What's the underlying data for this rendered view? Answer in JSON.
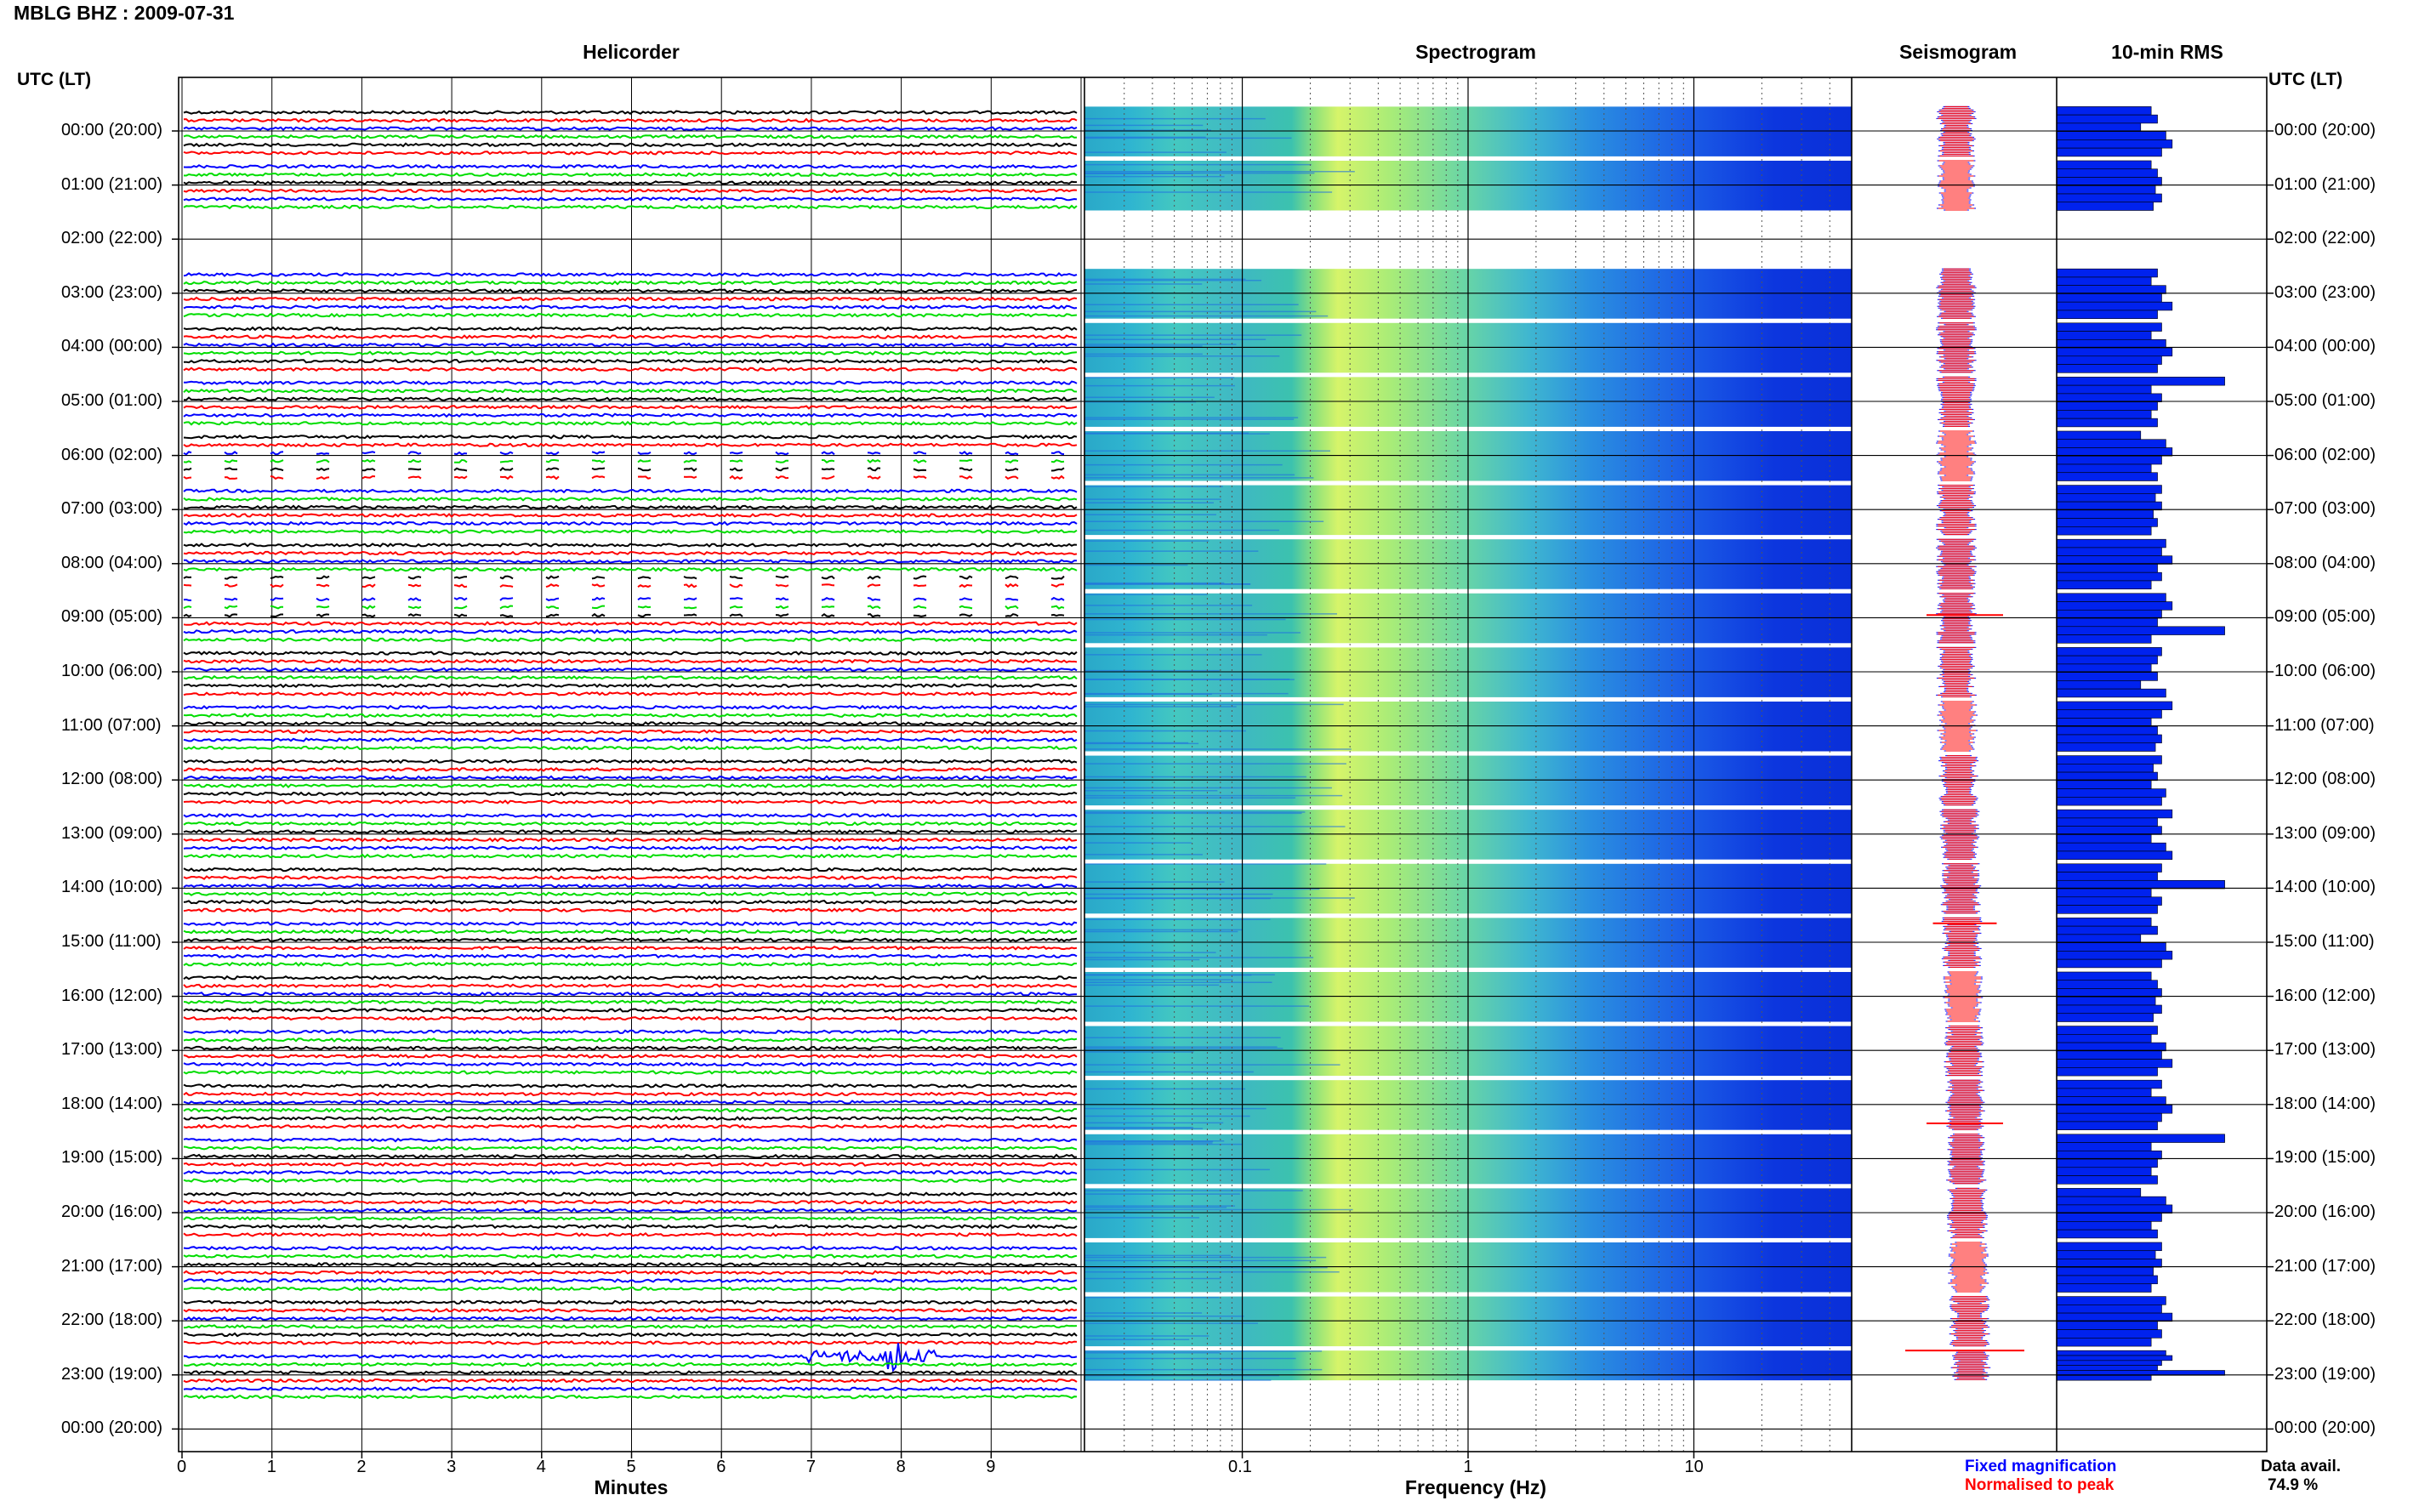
{
  "title": "MBLG BHZ : 2009-07-31",
  "panels": {
    "helicorder": "Helicorder",
    "spectrogram": "Spectrogram",
    "seismogram": "Seismogram",
    "rms": "10-min RMS"
  },
  "utc_header_left": "UTC (LT)",
  "utc_header_right": "UTC (LT)",
  "time_labels": [
    "00:00 (20:00)",
    "01:00 (21:00)",
    "02:00 (22:00)",
    "03:00 (23:00)",
    "04:00 (00:00)",
    "05:00 (01:00)",
    "06:00 (02:00)",
    "07:00 (03:00)",
    "08:00 (04:00)",
    "09:00 (05:00)",
    "10:00 (06:00)",
    "11:00 (07:00)",
    "12:00 (08:00)",
    "13:00 (09:00)",
    "14:00 (10:00)",
    "15:00 (11:00)",
    "16:00 (12:00)",
    "17:00 (13:00)",
    "18:00 (14:00)",
    "19:00 (15:00)",
    "20:00 (16:00)",
    "21:00 (17:00)",
    "22:00 (18:00)",
    "23:00 (19:00)",
    "00:00 (20:00)"
  ],
  "minutes_ticks": [
    "0",
    "1",
    "2",
    "3",
    "4",
    "5",
    "6",
    "7",
    "8",
    "9"
  ],
  "minutes_label": "Minutes",
  "frequency_ticks": [
    "0.1",
    "1",
    "10"
  ],
  "frequency_label": "Frequency (Hz)",
  "legend": {
    "fixed": "Fixed magnification",
    "normalised": "Normalised to peak",
    "data_avail_label": "Data avail.",
    "data_avail_value": "74.9 %"
  },
  "colors": {
    "trace_cycle": [
      "#000000",
      "#ff0000",
      "#0000ff",
      "#00dd00"
    ],
    "fixed_magnification": "#0000ff",
    "normalised_to_peak": "#ff0000",
    "rms_bar": "#0022ee"
  },
  "chart_data": {
    "type": "heatmap",
    "title": "MBLG BHZ : 2009-07-31",
    "hours_utc": 24,
    "helicorder_traces_per_hour": 6,
    "helicorder_xlim_minutes": [
      0,
      10
    ],
    "spectrogram_xlim_hz": [
      0.02,
      50
    ],
    "spectrogram_xscale": "log",
    "hours_with_data": [
      0,
      1,
      3,
      4,
      5,
      6,
      7,
      8,
      9,
      10,
      11,
      12,
      13,
      14,
      15,
      16,
      17,
      18,
      19,
      20,
      21,
      22,
      23
    ],
    "hours_without_data": [
      2
    ],
    "rms_bars_per_hour": 6,
    "rms_relative_levels": [
      0.45,
      0.48,
      0.4,
      0.52,
      0.55,
      0.5,
      0.45,
      0.48,
      0.5,
      0.47,
      0.5,
      0.46,
      0.48,
      0.45,
      0.52,
      0.5,
      0.55,
      0.48,
      0.5,
      0.45,
      0.52,
      0.55,
      0.5,
      0.48,
      0.8,
      0.45,
      0.5,
      0.48
    ],
    "data_availability_percent": 74.9
  }
}
